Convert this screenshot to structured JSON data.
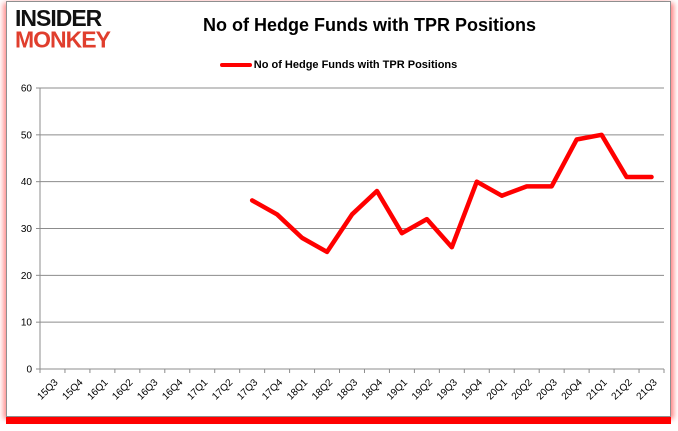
{
  "logo": {
    "line1": "INSIDER",
    "line2": "MONKEY"
  },
  "header": {
    "title": "No of Hedge Funds with TPR Positions"
  },
  "legend": {
    "label": "No of Hedge Funds with TPR Positions"
  },
  "colors": {
    "line": "#FF0000",
    "grid": "#8C8C8C",
    "axis": "#8C8C8C",
    "text": "#000000",
    "logo_black": "#111111",
    "logo_red": "#E03E2D",
    "border_shadow_red": "#FF0000"
  },
  "chart_data": {
    "type": "line",
    "title": "No of Hedge Funds with TPR Positions",
    "xlabel": "",
    "ylabel": "",
    "ylim": [
      0,
      60
    ],
    "yticks": [
      0,
      10,
      20,
      30,
      40,
      50,
      60
    ],
    "grid": true,
    "legend_position": "top",
    "categories": [
      "15Q3",
      "15Q4",
      "16Q1",
      "16Q2",
      "16Q3",
      "16Q4",
      "17Q1",
      "17Q2",
      "17Q3",
      "17Q4",
      "18Q1",
      "18Q2",
      "18Q3",
      "18Q4",
      "19Q1",
      "19Q2",
      "19Q3",
      "19Q4",
      "20Q1",
      "20Q2",
      "20Q3",
      "20Q4",
      "21Q1",
      "21Q2",
      "21Q3"
    ],
    "series": [
      {
        "name": "No of Hedge Funds with TPR Positions",
        "color": "#FF0000",
        "values": [
          null,
          null,
          null,
          null,
          null,
          null,
          null,
          null,
          36,
          33,
          28,
          25,
          33,
          38,
          29,
          32,
          26,
          40,
          37,
          39,
          39,
          49,
          50,
          41,
          41
        ]
      }
    ]
  }
}
